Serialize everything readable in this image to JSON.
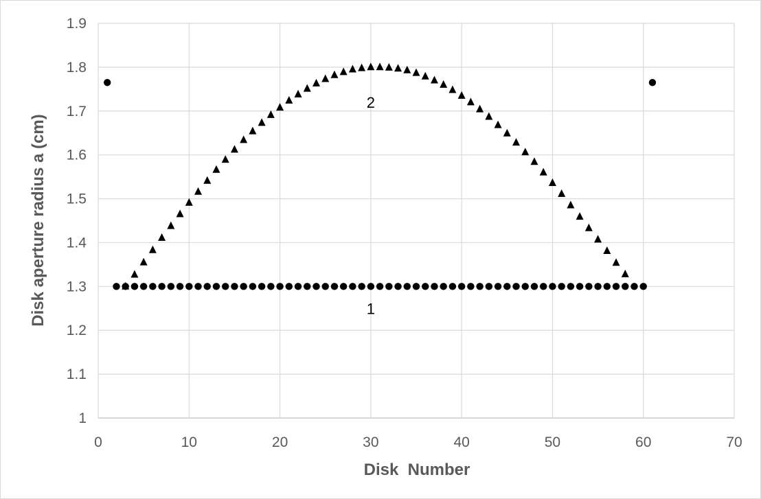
{
  "chart_data": {
    "type": "scatter",
    "xlabel": "Disk  Number",
    "ylabel": "Disk aperture radius a (cm)",
    "xlim": [
      0,
      70
    ],
    "ylim": [
      1,
      1.9
    ],
    "xticks": [
      "0",
      "10",
      "20",
      "30",
      "40",
      "50",
      "60",
      "70"
    ],
    "yticks": [
      "1",
      "1.1",
      "1.2",
      "1.3",
      "1.4",
      "1.5",
      "1.6",
      "1.7",
      "1.8",
      "1.9"
    ],
    "grid": true,
    "legend": "none",
    "annotations": [
      {
        "text": "1",
        "x": 30,
        "y": 1.25
      },
      {
        "text": "2",
        "x": 30,
        "y": 1.72
      }
    ],
    "series": [
      {
        "marker": "circle",
        "x": [
          1,
          2,
          3,
          4,
          5,
          6,
          7,
          8,
          9,
          10,
          11,
          12,
          13,
          14,
          15,
          16,
          17,
          18,
          19,
          20,
          21,
          22,
          23,
          24,
          25,
          26,
          27,
          28,
          29,
          30,
          31,
          32,
          33,
          34,
          35,
          36,
          37,
          38,
          39,
          40,
          41,
          42,
          43,
          44,
          45,
          46,
          47,
          48,
          49,
          50,
          51,
          52,
          53,
          54,
          55,
          56,
          57,
          58,
          59,
          60,
          61
        ],
        "y": [
          1.765,
          1.3,
          1.3,
          1.3,
          1.3,
          1.3,
          1.3,
          1.3,
          1.3,
          1.3,
          1.3,
          1.3,
          1.3,
          1.3,
          1.3,
          1.3,
          1.3,
          1.3,
          1.3,
          1.3,
          1.3,
          1.3,
          1.3,
          1.3,
          1.3,
          1.3,
          1.3,
          1.3,
          1.3,
          1.3,
          1.3,
          1.3,
          1.3,
          1.3,
          1.3,
          1.3,
          1.3,
          1.3,
          1.3,
          1.3,
          1.3,
          1.3,
          1.3,
          1.3,
          1.3,
          1.3,
          1.3,
          1.3,
          1.3,
          1.3,
          1.3,
          1.3,
          1.3,
          1.3,
          1.3,
          1.3,
          1.3,
          1.3,
          1.3,
          1.3,
          1.765
        ]
      },
      {
        "marker": "triangle",
        "x": [
          3,
          4,
          5,
          6,
          7,
          8,
          9,
          10,
          11,
          12,
          13,
          14,
          15,
          16,
          17,
          18,
          19,
          20,
          21,
          22,
          23,
          24,
          25,
          26,
          27,
          28,
          29,
          30,
          31,
          32,
          33,
          34,
          35,
          36,
          37,
          38,
          39,
          40,
          41,
          42,
          43,
          44,
          45,
          46,
          47,
          48,
          49,
          50,
          51,
          52,
          53,
          54,
          55,
          56,
          57,
          58
        ],
        "y": [
          1.3,
          1.327,
          1.355,
          1.383,
          1.411,
          1.438,
          1.465,
          1.491,
          1.516,
          1.541,
          1.566,
          1.589,
          1.612,
          1.634,
          1.654,
          1.673,
          1.691,
          1.708,
          1.724,
          1.738,
          1.751,
          1.763,
          1.773,
          1.782,
          1.789,
          1.795,
          1.798,
          1.8,
          1.8,
          1.799,
          1.797,
          1.793,
          1.787,
          1.779,
          1.77,
          1.76,
          1.748,
          1.735,
          1.72,
          1.704,
          1.687,
          1.668,
          1.649,
          1.628,
          1.606,
          1.584,
          1.56,
          1.536,
          1.511,
          1.485,
          1.459,
          1.433,
          1.407,
          1.381,
          1.354,
          1.328
        ]
      }
    ]
  }
}
